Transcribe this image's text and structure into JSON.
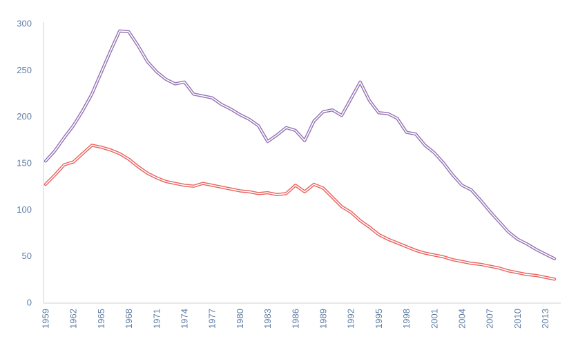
{
  "chart_data": {
    "type": "line",
    "x": [
      1959,
      1960,
      1961,
      1962,
      1963,
      1964,
      1965,
      1966,
      1967,
      1968,
      1969,
      1970,
      1971,
      1972,
      1973,
      1974,
      1975,
      1976,
      1977,
      1978,
      1979,
      1980,
      1981,
      1982,
      1983,
      1984,
      1985,
      1986,
      1987,
      1988,
      1989,
      1990,
      1991,
      1992,
      1993,
      1994,
      1995,
      1996,
      1997,
      1998,
      1999,
      2000,
      2001,
      2002,
      2003,
      2004,
      2005,
      2006,
      2007,
      2008,
      2009,
      2010,
      2011,
      2012,
      2013,
      2014
    ],
    "series": [
      {
        "name": "purple-series",
        "color": "#9472B4",
        "center_stripe_color": "#ffffff",
        "values": [
          152,
          163,
          177,
          190,
          206,
          224,
          247,
          270,
          292,
          291,
          276,
          259,
          248,
          240,
          235,
          237,
          224,
          222,
          220,
          213,
          208,
          202,
          197,
          190,
          173,
          180,
          188,
          185,
          174,
          195,
          205,
          207,
          201,
          219,
          237,
          217,
          204,
          203,
          198,
          183,
          181,
          169,
          161,
          150,
          137,
          126,
          121,
          110,
          98,
          87,
          76,
          68,
          63,
          57,
          52,
          47
        ]
      },
      {
        "name": "red-series",
        "color": "#E8615D",
        "center_stripe_color": "#ffffff",
        "values": [
          127,
          137,
          148,
          151,
          160,
          169,
          167,
          164,
          160,
          154,
          146,
          139,
          134,
          130,
          128,
          126,
          125,
          128,
          126,
          124,
          122,
          120,
          119,
          117,
          118,
          116,
          117,
          126,
          119,
          127,
          123,
          113,
          103,
          97,
          88,
          81,
          73,
          68,
          64,
          60,
          56,
          53,
          51,
          49,
          46,
          44,
          42,
          41,
          39,
          37,
          34,
          32,
          30,
          29,
          27,
          25
        ]
      }
    ],
    "ylim": [
      0,
      300
    ],
    "yticks": [
      0,
      50,
      100,
      150,
      200,
      250,
      300
    ],
    "xticks": [
      1959,
      1962,
      1965,
      1968,
      1971,
      1974,
      1977,
      1980,
      1983,
      1986,
      1989,
      1992,
      1995,
      1998,
      2001,
      2004,
      2007,
      2010,
      2013
    ],
    "xtick_rotation_deg": -90,
    "grid": false,
    "legend_position": "none",
    "line_style": "double",
    "axis_color": "#d9d9d9",
    "tick_label_color": "#5e7da4"
  }
}
